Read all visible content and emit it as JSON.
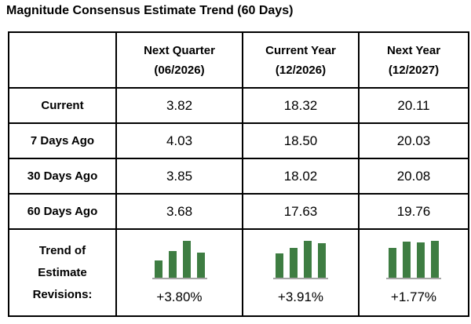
{
  "title": "Magnitude Consensus Estimate Trend (60 Days)",
  "table": {
    "corner_label": "",
    "columns": [
      {
        "line1": "Next Quarter",
        "line2": "(06/2026)"
      },
      {
        "line1": "Current Year",
        "line2": "(12/2026)"
      },
      {
        "line1": "Next Year",
        "line2": "(12/2027)"
      }
    ],
    "rows": [
      {
        "label": "Current",
        "values": [
          "3.82",
          "18.32",
          "20.11"
        ]
      },
      {
        "label": "7 Days Ago",
        "values": [
          "4.03",
          "18.50",
          "20.03"
        ]
      },
      {
        "label": "30 Days Ago",
        "values": [
          "3.85",
          "18.02",
          "20.08"
        ]
      },
      {
        "label": "60 Days Ago",
        "values": [
          "3.68",
          "17.63",
          "19.76"
        ]
      }
    ],
    "trend_label_lines": [
      "Trend of",
      "Estimate",
      "Revisions:"
    ],
    "trend_revisions": [
      "+3.80%",
      "+3.91%",
      "+1.77%"
    ]
  },
  "chart_data": [
    {
      "type": "table",
      "title": "Magnitude Consensus Estimate Trend (60 Days)",
      "columns": [
        "",
        "Next Quarter (06/2026)",
        "Current Year (12/2026)",
        "Next Year (12/2027)"
      ],
      "rows": [
        [
          "Current",
          3.82,
          18.32,
          20.11
        ],
        [
          "7 Days Ago",
          4.03,
          18.5,
          20.03
        ],
        [
          "30 Days Ago",
          3.85,
          18.02,
          20.08
        ],
        [
          "60 Days Ago",
          3.68,
          17.63,
          19.76
        ]
      ]
    },
    {
      "type": "bar",
      "title": "Next Quarter (06/2026) Trend of Estimate Revisions",
      "categories": [
        "60 Days Ago",
        "30 Days Ago",
        "7 Days Ago",
        "Current"
      ],
      "values": [
        3.68,
        3.85,
        4.03,
        3.82
      ],
      "annotation": "+3.80%",
      "ylim": [
        3.37,
        4.03
      ],
      "legend": "none",
      "grid": false
    },
    {
      "type": "bar",
      "title": "Current Year (12/2026) Trend of Estimate Revisions",
      "categories": [
        "60 Days Ago",
        "30 Days Ago",
        "7 Days Ago",
        "Current"
      ],
      "values": [
        17.63,
        18.02,
        18.5,
        18.32
      ],
      "annotation": "+3.91%",
      "ylim": [
        15.94,
        18.5
      ],
      "legend": "none",
      "grid": false
    },
    {
      "type": "bar",
      "title": "Next Year (12/2027) Trend of Estimate Revisions",
      "categories": [
        "60 Days Ago",
        "30 Days Ago",
        "7 Days Ago",
        "Current"
      ],
      "values": [
        19.76,
        20.08,
        20.03,
        20.11
      ],
      "annotation": "+1.77%",
      "ylim": [
        18.28,
        20.11
      ],
      "legend": "none",
      "grid": false
    }
  ],
  "colors": {
    "bar_green": "#3E7D42",
    "baseline_gray": "#A6A6A6",
    "border": "#000000",
    "text": "#000000",
    "background": "#FFFFFF"
  }
}
